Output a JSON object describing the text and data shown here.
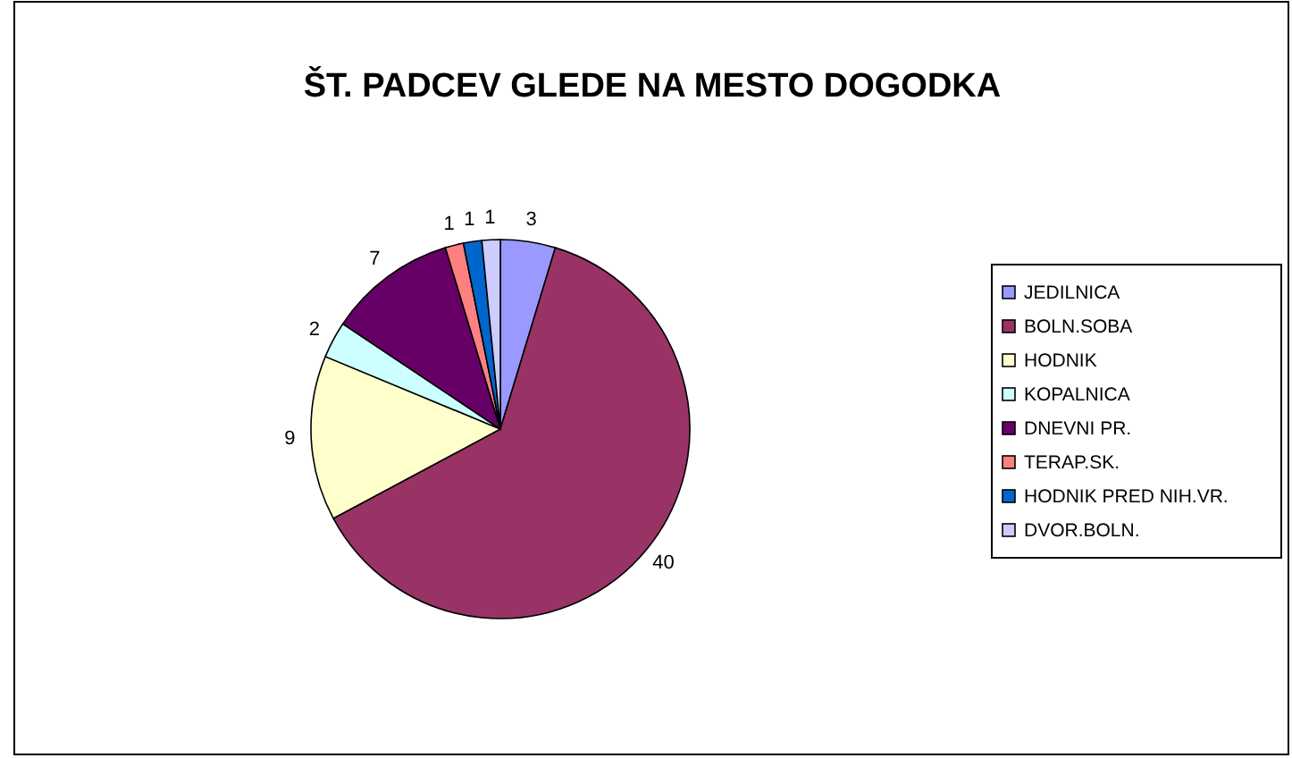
{
  "chart_data": {
    "type": "pie",
    "title": "ŠT. PADCEV GLEDE NA MESTO DOGODKA",
    "categories": [
      "JEDILNICA",
      "BOLN.SOBA",
      "HODNIK",
      "KOPALNICA",
      "DNEVNI PR.",
      "TERAP.SK.",
      "HODNIK PRED NIH.VR.",
      "DVOR.BOLN."
    ],
    "values": [
      3,
      40,
      9,
      2,
      7,
      1,
      1,
      1
    ],
    "colors": [
      "#9999ff",
      "#993366",
      "#ffffcc",
      "#ccffff",
      "#660066",
      "#ff8080",
      "#0066cc",
      "#ccccff"
    ],
    "data_labels": true,
    "legend": "right"
  }
}
